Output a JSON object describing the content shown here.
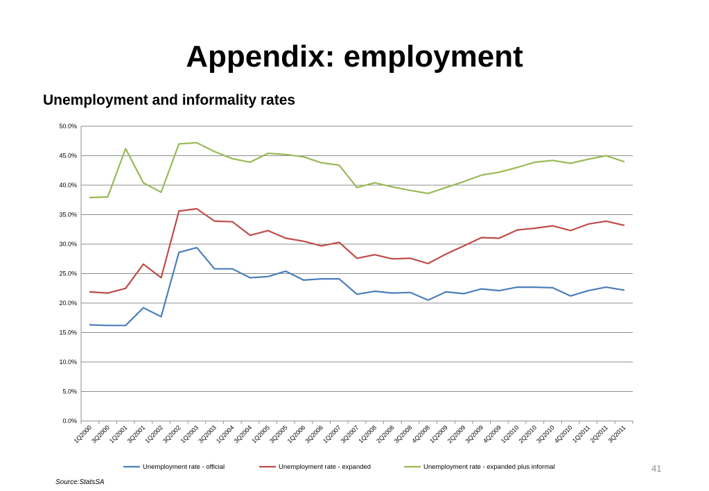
{
  "slide": {
    "title": "Appendix: employment",
    "page_number": "41",
    "source": "Source:StatsSA"
  },
  "chart_data": {
    "type": "line",
    "title": "Unemployment and informality rates",
    "xlabel": "",
    "ylabel": "",
    "ylim": [
      0,
      50
    ],
    "y_ticks": [
      "0.0%",
      "5.0%",
      "10.0%",
      "15.0%",
      "20.0%",
      "25.0%",
      "30.0%",
      "35.0%",
      "40.0%",
      "45.0%",
      "50.0%"
    ],
    "grid": true,
    "legend_position": "bottom",
    "categories": [
      "1Q2000",
      "3Q2000",
      "1Q2001",
      "3Q2001",
      "1Q2002",
      "3Q2002",
      "1Q2003",
      "3Q2003",
      "1Q2004",
      "3Q2004",
      "1Q2005",
      "3Q2005",
      "1Q2006",
      "3Q2006",
      "1Q2007",
      "3Q2007",
      "1Q2008",
      "2Q2008",
      "3Q2008",
      "4Q2008",
      "1Q2009",
      "2Q2009",
      "3Q2009",
      "4Q2009",
      "1Q2010",
      "2Q2010",
      "3Q2010",
      "4Q2010",
      "1Q2011",
      "2Q2011",
      "3Q2011"
    ],
    "series": [
      {
        "name": "Unemployment rate - official",
        "color": "#4a7ebb",
        "values": [
          16.3,
          16.2,
          16.2,
          19.2,
          17.7,
          28.6,
          29.4,
          25.8,
          25.8,
          24.3,
          24.5,
          25.4,
          23.9,
          24.1,
          24.1,
          21.5,
          22.0,
          21.7,
          21.8,
          20.5,
          21.9,
          21.6,
          22.4,
          22.1,
          22.7,
          22.7,
          22.6,
          21.2,
          22.1,
          22.7,
          22.2
        ]
      },
      {
        "name": "Unemployment rate - expanded",
        "color": "#be4b48",
        "values": [
          21.9,
          21.7,
          22.5,
          26.6,
          24.3,
          35.6,
          36.0,
          33.9,
          33.8,
          31.5,
          32.3,
          31.0,
          30.5,
          29.7,
          30.3,
          27.6,
          28.2,
          27.5,
          27.6,
          26.7,
          28.3,
          29.7,
          31.1,
          31.0,
          32.4,
          32.7,
          33.1,
          32.3,
          33.4,
          33.9,
          33.2
        ]
      },
      {
        "name": "Unemployment rate - expanded plus informal",
        "color": "#98b954",
        "values": [
          37.9,
          38.0,
          46.2,
          40.4,
          38.8,
          47.0,
          47.2,
          45.7,
          44.5,
          43.9,
          45.4,
          45.2,
          44.8,
          43.8,
          43.4,
          39.6,
          40.4,
          39.7,
          39.1,
          38.6,
          39.6,
          40.6,
          41.7,
          42.2,
          43.0,
          43.9,
          44.2,
          43.7,
          44.4,
          45.0,
          44.0
        ]
      }
    ]
  }
}
